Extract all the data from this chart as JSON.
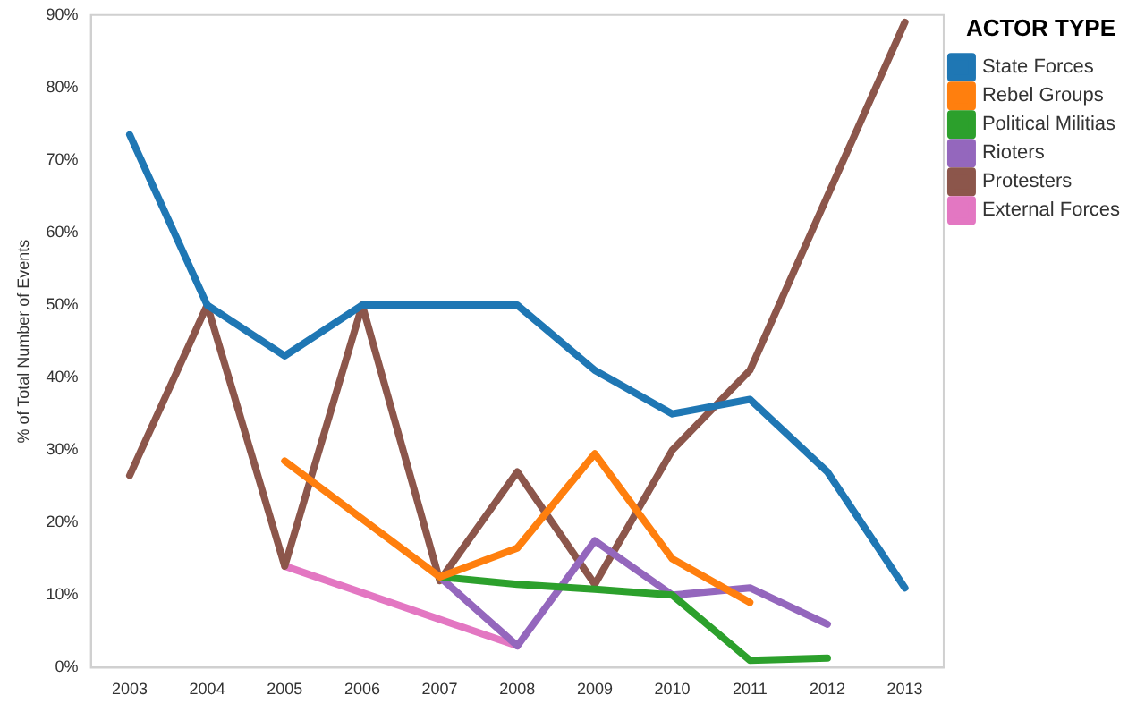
{
  "chart_data": {
    "type": "line",
    "ylabel": "% of Total Number of Events",
    "legend_title": "ACTOR TYPE",
    "legend": "top right",
    "grid": false,
    "categories": [
      "2003",
      "2004",
      "2005",
      "2006",
      "2007",
      "2008",
      "2009",
      "2010",
      "2011",
      "2012",
      "2013"
    ],
    "ylim": [
      0,
      90
    ],
    "yticks": [
      {
        "value": 0,
        "label": "0%"
      },
      {
        "value": 10,
        "label": "10%"
      },
      {
        "value": 20,
        "label": "20%"
      },
      {
        "value": 30,
        "label": "30%"
      },
      {
        "value": 40,
        "label": "40%"
      },
      {
        "value": 50,
        "label": "50%"
      },
      {
        "value": 60,
        "label": "60%"
      },
      {
        "value": 70,
        "label": "70%"
      },
      {
        "value": 80,
        "label": "80%"
      },
      {
        "value": 90,
        "label": "90%"
      }
    ],
    "series": [
      {
        "name": "State Forces",
        "color": "#1f77b4",
        "values": [
          73.5,
          50,
          43,
          50,
          50,
          50,
          41,
          35,
          37,
          27,
          11
        ]
      },
      {
        "name": "Rebel Groups",
        "color": "#ff7f0e",
        "values": [
          null,
          null,
          28.5,
          null,
          12.5,
          16.5,
          29.5,
          15,
          9,
          null,
          null
        ]
      },
      {
        "name": "Political Militias",
        "color": "#2ca02c",
        "values": [
          null,
          null,
          null,
          null,
          12.5,
          11.5,
          10.8,
          10,
          1,
          1.3,
          null
        ]
      },
      {
        "name": "Rioters",
        "color": "#9467bd",
        "values": [
          null,
          null,
          null,
          null,
          12.5,
          3,
          17.5,
          10,
          11,
          6,
          null
        ]
      },
      {
        "name": "Protesters",
        "color": "#8c564b",
        "values": [
          26.5,
          50,
          14,
          50,
          12,
          27,
          11.5,
          30,
          41,
          65,
          89
        ]
      },
      {
        "name": "External Forces",
        "color": "#e377c2",
        "values": [
          null,
          null,
          14,
          null,
          null,
          3,
          null,
          null,
          null,
          null,
          null
        ]
      }
    ]
  }
}
